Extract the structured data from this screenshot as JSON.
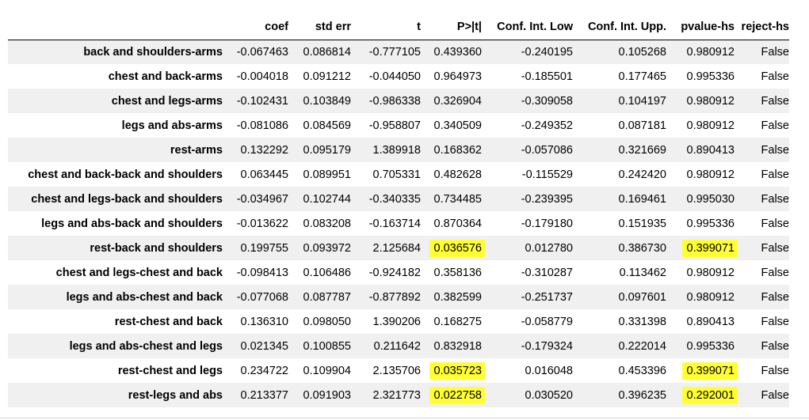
{
  "highlight_color": "#ffff33",
  "columns": [
    "",
    "coef",
    "std err",
    "t",
    "P>|t|",
    "Conf. Int. Low",
    "Conf. Int. Upp.",
    "pvalue-hs",
    "reject-hs"
  ],
  "rows": [
    {
      "label": "back and shoulders-arms",
      "coef": "-0.067463",
      "std_err": "0.086814",
      "t": "-0.777105",
      "p": "0.439360",
      "ci_low": "-0.240195",
      "ci_upp": "0.105268",
      "pvalue_hs": "0.980912",
      "reject_hs": "False"
    },
    {
      "label": "chest and back-arms",
      "coef": "-0.004018",
      "std_err": "0.091212",
      "t": "-0.044050",
      "p": "0.964973",
      "ci_low": "-0.185501",
      "ci_upp": "0.177465",
      "pvalue_hs": "0.995336",
      "reject_hs": "False"
    },
    {
      "label": "chest and legs-arms",
      "coef": "-0.102431",
      "std_err": "0.103849",
      "t": "-0.986338",
      "p": "0.326904",
      "ci_low": "-0.309058",
      "ci_upp": "0.104197",
      "pvalue_hs": "0.980912",
      "reject_hs": "False"
    },
    {
      "label": "legs and abs-arms",
      "coef": "-0.081086",
      "std_err": "0.084569",
      "t": "-0.958807",
      "p": "0.340509",
      "ci_low": "-0.249352",
      "ci_upp": "0.087181",
      "pvalue_hs": "0.980912",
      "reject_hs": "False"
    },
    {
      "label": "rest-arms",
      "coef": "0.132292",
      "std_err": "0.095179",
      "t": "1.389918",
      "p": "0.168362",
      "ci_low": "-0.057086",
      "ci_upp": "0.321669",
      "pvalue_hs": "0.890413",
      "reject_hs": "False"
    },
    {
      "label": "chest and back-back and shoulders",
      "coef": "0.063445",
      "std_err": "0.089951",
      "t": "0.705331",
      "p": "0.482628",
      "ci_low": "-0.115529",
      "ci_upp": "0.242420",
      "pvalue_hs": "0.980912",
      "reject_hs": "False"
    },
    {
      "label": "chest and legs-back and shoulders",
      "coef": "-0.034967",
      "std_err": "0.102744",
      "t": "-0.340335",
      "p": "0.734485",
      "ci_low": "-0.239395",
      "ci_upp": "0.169461",
      "pvalue_hs": "0.995030",
      "reject_hs": "False"
    },
    {
      "label": "legs and abs-back and shoulders",
      "coef": "-0.013622",
      "std_err": "0.083208",
      "t": "-0.163714",
      "p": "0.870364",
      "ci_low": "-0.179180",
      "ci_upp": "0.151935",
      "pvalue_hs": "0.995336",
      "reject_hs": "False"
    },
    {
      "label": "rest-back and shoulders",
      "coef": "0.199755",
      "std_err": "0.093972",
      "t": "2.125684",
      "p": "0.036576",
      "ci_low": "0.012780",
      "ci_upp": "0.386730",
      "pvalue_hs": "0.399071",
      "reject_hs": "False",
      "highlighted": true
    },
    {
      "label": "chest and legs-chest and back",
      "coef": "-0.098413",
      "std_err": "0.106486",
      "t": "-0.924182",
      "p": "0.358136",
      "ci_low": "-0.310287",
      "ci_upp": "0.113462",
      "pvalue_hs": "0.980912",
      "reject_hs": "False"
    },
    {
      "label": "legs and abs-chest and back",
      "coef": "-0.077068",
      "std_err": "0.087787",
      "t": "-0.877892",
      "p": "0.382599",
      "ci_low": "-0.251737",
      "ci_upp": "0.097601",
      "pvalue_hs": "0.980912",
      "reject_hs": "False"
    },
    {
      "label": "rest-chest and back",
      "coef": "0.136310",
      "std_err": "0.098050",
      "t": "1.390206",
      "p": "0.168275",
      "ci_low": "-0.058779",
      "ci_upp": "0.331398",
      "pvalue_hs": "0.890413",
      "reject_hs": "False"
    },
    {
      "label": "legs and abs-chest and legs",
      "coef": "0.021345",
      "std_err": "0.100855",
      "t": "0.211642",
      "p": "0.832918",
      "ci_low": "-0.179324",
      "ci_upp": "0.222014",
      "pvalue_hs": "0.995336",
      "reject_hs": "False"
    },
    {
      "label": "rest-chest and legs",
      "coef": "0.234722",
      "std_err": "0.109904",
      "t": "2.135706",
      "p": "0.035723",
      "ci_low": "0.016048",
      "ci_upp": "0.453396",
      "pvalue_hs": "0.399071",
      "reject_hs": "False",
      "highlighted": true
    },
    {
      "label": "rest-legs and abs",
      "coef": "0.213377",
      "std_err": "0.091903",
      "t": "2.321773",
      "p": "0.022758",
      "ci_low": "0.030520",
      "ci_upp": "0.396235",
      "pvalue_hs": "0.292001",
      "reject_hs": "False",
      "highlighted": true
    }
  ]
}
